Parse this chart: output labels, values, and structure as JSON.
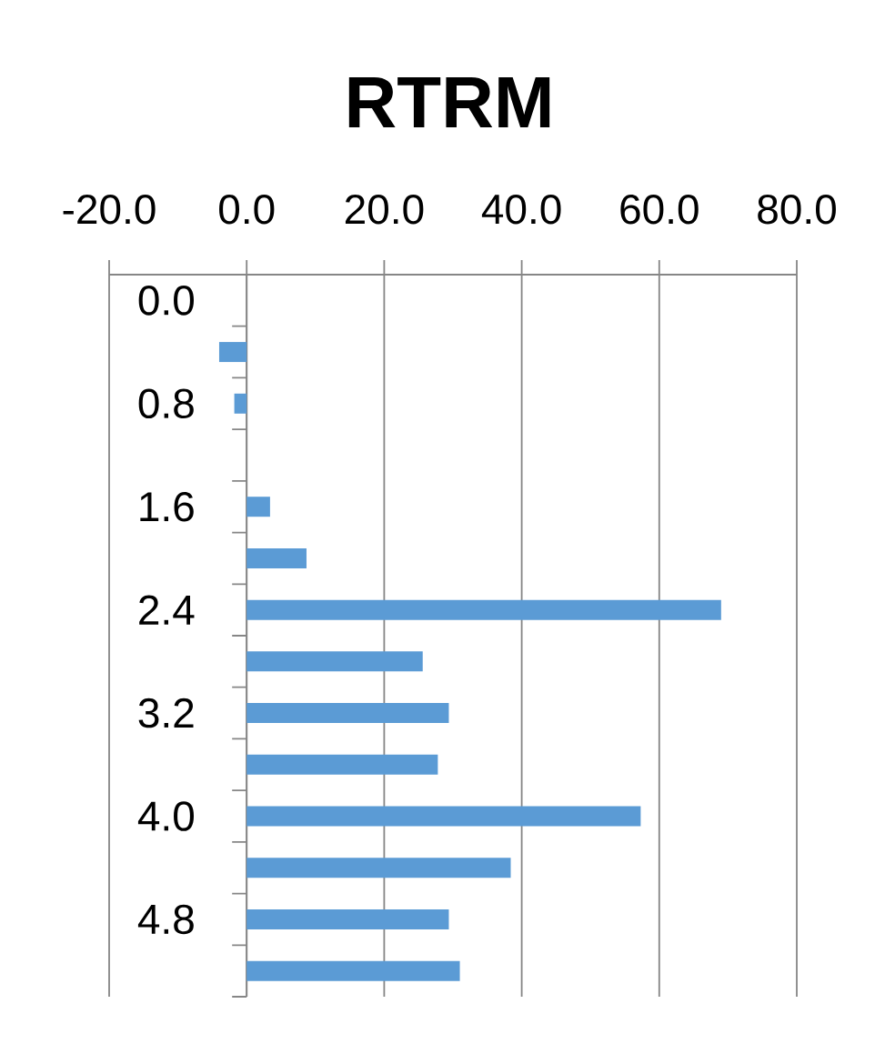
{
  "chart_data": {
    "type": "bar",
    "orientation": "horizontal",
    "title": "RTRM",
    "categories": [
      "0.0",
      null,
      "0.8",
      null,
      "1.6",
      null,
      "2.4",
      null,
      "3.2",
      null,
      "4.0",
      null,
      "4.8",
      null
    ],
    "values": [
      null,
      -4.0,
      -1.8,
      null,
      3.4,
      8.7,
      69.0,
      25.6,
      29.4,
      27.8,
      57.3,
      38.4,
      29.4,
      31.0
    ],
    "color": "#5b9bd5",
    "xlim": [
      -20,
      80
    ],
    "xticks": [
      {
        "value": -20,
        "label": "-20.0"
      },
      {
        "value": 0,
        "label": "0.0"
      },
      {
        "value": 20,
        "label": "20.0"
      },
      {
        "value": 40,
        "label": "40.0"
      },
      {
        "value": 60,
        "label": "60.0"
      },
      {
        "value": 80,
        "label": "80.0"
      }
    ],
    "grid": "x"
  }
}
